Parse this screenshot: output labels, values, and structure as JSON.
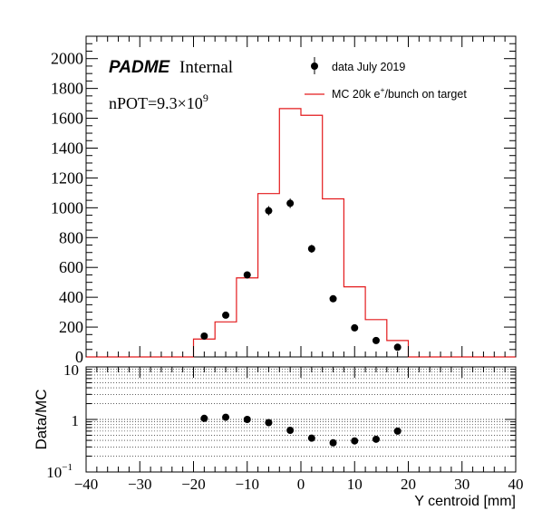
{
  "labels": {
    "brand": "PADME",
    "brand_suffix": "Internal",
    "npot_prefix": "nPOT=9.3×10",
    "npot_exp": "9",
    "legend_data": "data July 2019",
    "legend_mc_prefix": "MC 20k e",
    "legend_mc_sup": "+",
    "legend_mc_suffix": "/bunch on target",
    "ratio_ylabel": "Data/MC",
    "xlabel": "Y centroid [mm]",
    "ratio_tick_10": "10",
    "ratio_tick_1": "1",
    "ratio_tick_01_base": "10",
    "ratio_tick_01_exp": "−1"
  },
  "colors": {
    "mc_line": "#e31a1c",
    "data_marker": "#000000",
    "grid": "#000000"
  },
  "chart_data": [
    {
      "type": "histogram",
      "xlim": [
        -40,
        40
      ],
      "ylim": [
        0,
        2150
      ],
      "x_ticks": [
        -40,
        -30,
        -20,
        -10,
        0,
        10,
        20,
        30,
        40
      ],
      "y_ticks": [
        0,
        200,
        400,
        600,
        800,
        1000,
        1200,
        1400,
        1600,
        1800,
        2000
      ],
      "mc": {
        "name": "MC 20k e+/bunch on target",
        "bin_edges": [
          -40,
          -36,
          -32,
          -28,
          -24,
          -20,
          -16,
          -12,
          -8,
          -4,
          0,
          4,
          8,
          12,
          16,
          20,
          24,
          28,
          32,
          36,
          40
        ],
        "values": [
          0,
          0,
          0,
          0,
          0,
          120,
          235,
          530,
          1095,
          1665,
          1620,
          1060,
          470,
          250,
          110,
          0,
          0,
          0,
          0,
          0
        ]
      },
      "data": {
        "name": "data July 2019",
        "x": [
          -18,
          -14,
          -10,
          -6,
          -2,
          2,
          6,
          10,
          14,
          18
        ],
        "y": [
          140,
          280,
          550,
          980,
          1030,
          725,
          390,
          195,
          110,
          65
        ],
        "yerr": [
          12,
          17,
          23,
          31,
          32,
          27,
          20,
          14,
          10,
          8
        ]
      }
    },
    {
      "type": "scatter",
      "ylabel": "Data/MC",
      "xlabel": "Y centroid [mm]",
      "xlim": [
        -40,
        40
      ],
      "ylim": [
        0.1,
        10
      ],
      "log_y": true,
      "grid": true,
      "x": [
        -18,
        -14,
        -10,
        -6,
        -2,
        2,
        6,
        10,
        14,
        18
      ],
      "y": [
        1.05,
        1.1,
        1.0,
        0.87,
        0.62,
        0.44,
        0.36,
        0.39,
        0.42,
        0.6
      ]
    }
  ]
}
